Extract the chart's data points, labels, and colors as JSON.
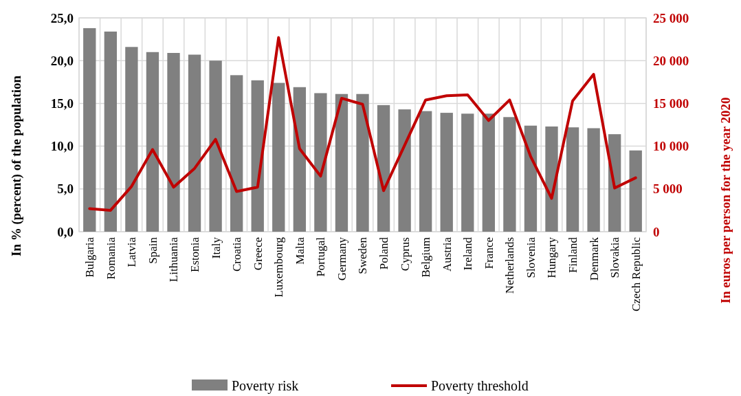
{
  "chart_data": {
    "type": "bar",
    "ylabel": "In % (percent) of the population",
    "y2label": "In euros per person for the year 2020",
    "categories": [
      "Bulgaria",
      "Romania",
      "Latvia",
      "Spain",
      "Lithuania",
      "Estonia",
      "Italy",
      "Croatia",
      "Greece",
      "Luxembourg",
      "Malta",
      "Portugal",
      "Germany",
      "Sweden",
      "Poland",
      "Cyprus",
      "Belgium",
      "Austria",
      "Ireland",
      "France",
      "Netherlands",
      "Slovenia",
      "Hungary",
      "Finland",
      "Denmark",
      "Slovakia",
      "Czech Republic"
    ],
    "series": [
      {
        "name": "Poverty risk",
        "color": "#808080",
        "values": [
          23.8,
          23.4,
          21.6,
          21.0,
          20.9,
          20.7,
          20.0,
          18.3,
          17.7,
          17.4,
          16.9,
          16.2,
          16.1,
          16.1,
          14.8,
          14.3,
          14.1,
          13.9,
          13.8,
          13.8,
          13.4,
          12.4,
          12.3,
          12.2,
          12.1,
          11.4,
          9.5
        ]
      },
      {
        "name": "Poverty threshold",
        "type": "line",
        "axis": "y2",
        "color": "#c00000",
        "values": [
          2700,
          2500,
          5300,
          9600,
          5200,
          7400,
          10800,
          4700,
          5200,
          22700,
          9700,
          6500,
          15600,
          14900,
          4800,
          10100,
          15400,
          15900,
          16000,
          13000,
          15400,
          8800,
          3900,
          15300,
          18400,
          5100,
          6300
        ]
      }
    ],
    "ylim": [
      0,
      25
    ],
    "yticks": [
      {
        "value": 0,
        "label": "0,0"
      },
      {
        "value": 5,
        "label": "5,0"
      },
      {
        "value": 10,
        "label": "10,0"
      },
      {
        "value": 15,
        "label": "15,0"
      },
      {
        "value": 20,
        "label": "20,0"
      },
      {
        "value": 25,
        "label": "25,0"
      }
    ],
    "y2lim": [
      0,
      25000
    ],
    "y2ticks": [
      0,
      {
        "value": 5000,
        "label": "5 000"
      },
      {
        "value": 10000,
        "label": "10 000"
      },
      {
        "value": 15000,
        "label": "15 000"
      },
      {
        "value": 20000,
        "label": "20 000"
      },
      {
        "value": 25000,
        "label": "25 000"
      }
    ],
    "grid": true,
    "legend": "bottom",
    "marker": "none",
    "line_style": "solid"
  }
}
